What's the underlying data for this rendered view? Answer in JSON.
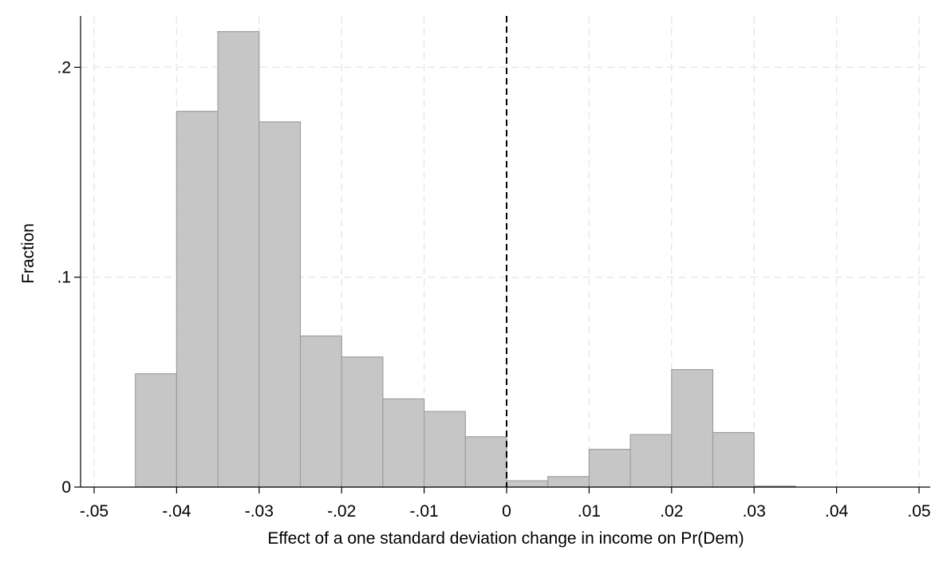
{
  "chart_data": {
    "type": "bar",
    "chart_kind": "histogram",
    "xlabel": "Effect of a one standard deviation change in income on Pr(Dem)",
    "ylabel": "Fraction",
    "xlim": [
      -0.05,
      0.05
    ],
    "ylim": [
      0,
      0.225
    ],
    "xticks": [
      {
        "value": -0.05,
        "label": "-.05"
      },
      {
        "value": -0.04,
        "label": "-.04"
      },
      {
        "value": -0.03,
        "label": "-.03"
      },
      {
        "value": -0.02,
        "label": "-.02"
      },
      {
        "value": -0.01,
        "label": "-.01"
      },
      {
        "value": 0,
        "label": "0"
      },
      {
        "value": 0.01,
        "label": ".01"
      },
      {
        "value": 0.02,
        "label": ".02"
      },
      {
        "value": 0.03,
        "label": ".03"
      },
      {
        "value": 0.04,
        "label": ".04"
      },
      {
        "value": 0.05,
        "label": ".05"
      }
    ],
    "yticks": [
      {
        "value": 0,
        "label": "0"
      },
      {
        "value": 0.1,
        "label": ".1"
      },
      {
        "value": 0.2,
        "label": ".2"
      }
    ],
    "bins": [
      {
        "x0": -0.045,
        "x1": -0.04,
        "value": 0.054
      },
      {
        "x0": -0.04,
        "x1": -0.035,
        "value": 0.179
      },
      {
        "x0": -0.035,
        "x1": -0.03,
        "value": 0.217
      },
      {
        "x0": -0.03,
        "x1": -0.025,
        "value": 0.174
      },
      {
        "x0": -0.025,
        "x1": -0.02,
        "value": 0.072
      },
      {
        "x0": -0.02,
        "x1": -0.015,
        "value": 0.062
      },
      {
        "x0": -0.015,
        "x1": -0.01,
        "value": 0.042
      },
      {
        "x0": -0.01,
        "x1": -0.005,
        "value": 0.036
      },
      {
        "x0": -0.005,
        "x1": 0,
        "value": 0.024
      },
      {
        "x0": 0,
        "x1": 0.005,
        "value": 0.003
      },
      {
        "x0": 0.005,
        "x1": 0.01,
        "value": 0.005
      },
      {
        "x0": 0.01,
        "x1": 0.015,
        "value": 0.018
      },
      {
        "x0": 0.015,
        "x1": 0.02,
        "value": 0.025
      },
      {
        "x0": 0.02,
        "x1": 0.025,
        "value": 0.056
      },
      {
        "x0": 0.025,
        "x1": 0.03,
        "value": 0.026
      },
      {
        "x0": 0.03,
        "x1": 0.035,
        "value": 0.0005
      }
    ],
    "reference_line": {
      "x": 0,
      "style": "dashed",
      "color": "#000000"
    },
    "grid": true,
    "colors": {
      "bar_fill": "#c6c6c6",
      "bar_stroke": "#9e9e9e",
      "grid": "#e8e8e8",
      "axis": "#000000"
    }
  }
}
